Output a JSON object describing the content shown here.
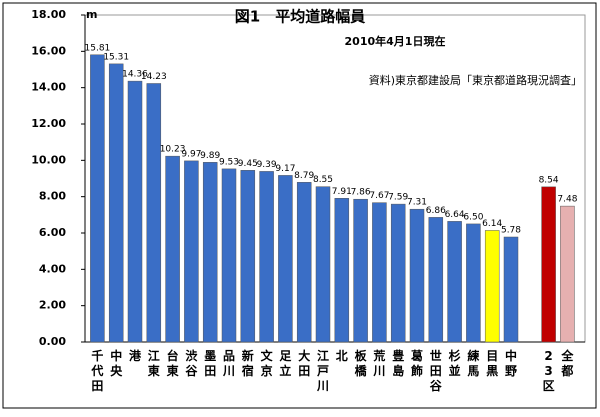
{
  "chart_data": {
    "type": "bar",
    "title": "図1　平均道路幅員",
    "subtitle": "2010年4月1日現在",
    "source": "資料)東京都建設局「東京都道路現況調査」",
    "y_unit": "m",
    "categories": [
      "千代田",
      "中央",
      "港",
      "江東",
      "台東",
      "渋谷",
      "墨田",
      "品川",
      "新宿",
      "文京",
      "足立",
      "大田",
      "江戸川",
      "北",
      "板橋",
      "荒川",
      "豊島",
      "葛飾",
      "世田谷",
      "杉並",
      "練馬",
      "目黒",
      "中野",
      null,
      "23区",
      "全都"
    ],
    "values": [
      15.81,
      15.31,
      14.36,
      14.23,
      10.23,
      9.97,
      9.89,
      9.53,
      9.45,
      9.39,
      9.17,
      8.79,
      8.55,
      7.91,
      7.86,
      7.67,
      7.59,
      7.31,
      6.86,
      6.64,
      6.5,
      6.14,
      5.78,
      null,
      8.54,
      7.48
    ],
    "value_labels": [
      "15.81",
      "15.31",
      "14.36",
      "14.23",
      "10.23",
      "9.97",
      "9.89",
      "9.53",
      "9.45",
      "9.39",
      "9.17",
      "8.79",
      "8.55",
      "7.91",
      "7.86",
      "7.67",
      "7.59",
      "7.31",
      "6.86",
      "6.64",
      "6.50",
      "6.14",
      "5.78",
      null,
      "8.54",
      "7.48"
    ],
    "colors": [
      "#3a6ec6",
      "#3a6ec6",
      "#3a6ec6",
      "#3a6ec6",
      "#3a6ec6",
      "#3a6ec6",
      "#3a6ec6",
      "#3a6ec6",
      "#3a6ec6",
      "#3a6ec6",
      "#3a6ec6",
      "#3a6ec6",
      "#3a6ec6",
      "#3a6ec6",
      "#3a6ec6",
      "#3a6ec6",
      "#3a6ec6",
      "#3a6ec6",
      "#3a6ec6",
      "#3a6ec6",
      "#3a6ec6",
      "#ffff00",
      "#3a6ec6",
      null,
      "#c00000",
      "#e6b0b0"
    ],
    "ylim": [
      0,
      18
    ],
    "yticks": [
      {
        "value": 0,
        "label": "0.00"
      },
      {
        "value": 2,
        "label": "2.00"
      },
      {
        "value": 4,
        "label": "4.00"
      },
      {
        "value": 6,
        "label": "6.00"
      },
      {
        "value": 8,
        "label": "8.00"
      },
      {
        "value": 10,
        "label": "10.00"
      },
      {
        "value": 12,
        "label": "12.00"
      },
      {
        "value": 14,
        "label": "14.00"
      },
      {
        "value": 16,
        "label": "16.00"
      },
      {
        "value": 18,
        "label": "18.00"
      }
    ],
    "grid": false
  }
}
